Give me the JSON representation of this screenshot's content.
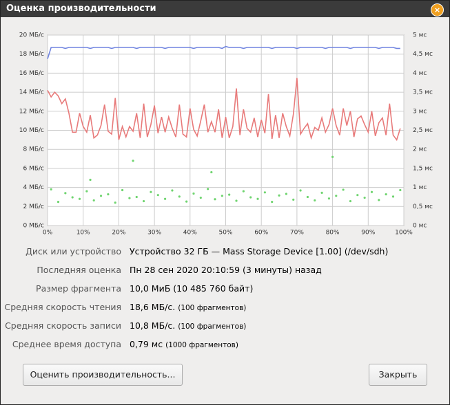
{
  "window": {
    "title": "Оценка производительности"
  },
  "chart_data": {
    "type": "line",
    "grid": true,
    "xlim": [
      0,
      100
    ],
    "xticks": [
      {
        "value": 0,
        "label": "0%"
      },
      {
        "value": 10,
        "label": "10%"
      },
      {
        "value": 20,
        "label": "20%"
      },
      {
        "value": 30,
        "label": "30%"
      },
      {
        "value": 40,
        "label": "40%"
      },
      {
        "value": 50,
        "label": "50%"
      },
      {
        "value": 60,
        "label": "60%"
      },
      {
        "value": 70,
        "label": "70%"
      },
      {
        "value": 80,
        "label": "80%"
      },
      {
        "value": 90,
        "label": "90%"
      },
      {
        "value": 100,
        "label": "100%"
      }
    ],
    "ylim": [
      0,
      20
    ],
    "yticks": [
      {
        "value": 0,
        "label": "0 МБ/с"
      },
      {
        "value": 2,
        "label": "2 МБ/с"
      },
      {
        "value": 4,
        "label": "4 МБ/с"
      },
      {
        "value": 6,
        "label": "6 МБ/с"
      },
      {
        "value": 8,
        "label": "8 МБ/с"
      },
      {
        "value": 10,
        "label": "10 МБ/с"
      },
      {
        "value": 12,
        "label": "12 МБ/с"
      },
      {
        "value": 14,
        "label": "14 МБ/с"
      },
      {
        "value": 16,
        "label": "16 МБ/с"
      },
      {
        "value": 18,
        "label": "18 МБ/с"
      },
      {
        "value": 20,
        "label": "20 МБ/с"
      }
    ],
    "y2lim": [
      0,
      5
    ],
    "y2ticks": [
      {
        "value": 0,
        "label": "0 мс"
      },
      {
        "value": 0.5,
        "label": "0,5 мс"
      },
      {
        "value": 1,
        "label": "1 мс"
      },
      {
        "value": 1.5,
        "label": "1,5 мс"
      },
      {
        "value": 2,
        "label": "2 мс"
      },
      {
        "value": 2.5,
        "label": "2,5 мс"
      },
      {
        "value": 3,
        "label": "3 мс"
      },
      {
        "value": 3.5,
        "label": "3,5 мс"
      },
      {
        "value": 4,
        "label": "4 мс"
      },
      {
        "value": 4.5,
        "label": "4,5 мс"
      },
      {
        "value": 5,
        "label": "5 мс"
      }
    ],
    "x": [
      0,
      1,
      2,
      3,
      4,
      5,
      6,
      7,
      8,
      9,
      10,
      11,
      12,
      13,
      14,
      15,
      16,
      17,
      18,
      19,
      20,
      21,
      22,
      23,
      24,
      25,
      26,
      27,
      28,
      29,
      30,
      31,
      32,
      33,
      34,
      35,
      36,
      37,
      38,
      39,
      40,
      41,
      42,
      43,
      44,
      45,
      46,
      47,
      48,
      49,
      50,
      51,
      52,
      53,
      54,
      55,
      56,
      57,
      58,
      59,
      60,
      61,
      62,
      63,
      64,
      65,
      66,
      67,
      68,
      69,
      70,
      71,
      72,
      73,
      74,
      75,
      76,
      77,
      78,
      79,
      80,
      81,
      82,
      83,
      84,
      85,
      86,
      87,
      88,
      89,
      90,
      91,
      92,
      93,
      94,
      95,
      96,
      97,
      98,
      99
    ],
    "series": [
      {
        "color": "#7084e0",
        "values": [
          17.5,
          18.7,
          18.7,
          18.7,
          18.7,
          18.6,
          18.7,
          18.7,
          18.7,
          18.7,
          18.7,
          18.7,
          18.6,
          18.7,
          18.7,
          18.7,
          18.7,
          18.7,
          18.6,
          18.7,
          18.7,
          18.7,
          18.7,
          18.7,
          18.7,
          18.6,
          18.7,
          18.7,
          18.7,
          18.7,
          18.7,
          18.7,
          18.7,
          18.6,
          18.7,
          18.7,
          18.7,
          18.7,
          18.7,
          18.7,
          18.7,
          18.6,
          18.7,
          18.7,
          18.7,
          18.7,
          18.7,
          18.7,
          18.7,
          18.6,
          18.8,
          18.7,
          18.7,
          18.7,
          18.7,
          18.6,
          18.7,
          18.7,
          18.7,
          18.7,
          18.7,
          18.7,
          18.7,
          18.6,
          18.7,
          18.7,
          18.7,
          18.7,
          18.7,
          18.7,
          18.6,
          18.7,
          18.7,
          18.7,
          18.7,
          18.7,
          18.7,
          18.7,
          18.6,
          18.7,
          18.7,
          18.7,
          18.7,
          18.7,
          18.7,
          18.6,
          18.7,
          18.7,
          18.7,
          18.7,
          18.7,
          18.7,
          18.7,
          18.6,
          18.7,
          18.7,
          18.7,
          18.7,
          18.6,
          18.6
        ]
      },
      {
        "color": "#e87a7a",
        "values": [
          14.2,
          13.5,
          14.0,
          13.6,
          12.8,
          13.3,
          11.8,
          9.8,
          9.8,
          11.8,
          10.4,
          9.8,
          11.6,
          9.2,
          9.5,
          10.5,
          12.7,
          9.9,
          9.6,
          13.4,
          9.0,
          10.4,
          9.3,
          10.4,
          9.9,
          11.8,
          9.2,
          12.8,
          9.3,
          10.6,
          12.6,
          9.7,
          11.4,
          9.8,
          11.4,
          10.2,
          9.3,
          12.7,
          9.6,
          9.3,
          12.3,
          10.1,
          9.4,
          11.0,
          12.7,
          9.8,
          10.9,
          9.8,
          12.2,
          9.2,
          11.4,
          9.2,
          10.4,
          14.4,
          9.5,
          12.2,
          10.2,
          9.8,
          11.3,
          9.3,
          11.1,
          9.7,
          13.8,
          9.1,
          11.6,
          9.2,
          11.8,
          10.4,
          9.4,
          11.7,
          15.5,
          9.6,
          10.2,
          10.7,
          9.2,
          10.3,
          10.0,
          11.3,
          9.8,
          10.6,
          12.3,
          10.5,
          9.5,
          12.3,
          10.5,
          12.0,
          9.3,
          11.2,
          11.5,
          10.6,
          9.8,
          12.0,
          9.4,
          10.8,
          11.3,
          9.5,
          12.8,
          9.5,
          9.0,
          10.2
        ]
      },
      {
        "color": "#6fd46f",
        "type": "scatter",
        "axis": "y2",
        "x": [
          1,
          3,
          5,
          7,
          9,
          11,
          13,
          15,
          17,
          19,
          21,
          23,
          25,
          27,
          29,
          31,
          33,
          35,
          37,
          39,
          41,
          43,
          45,
          47,
          49,
          51,
          53,
          55,
          57,
          59,
          61,
          63,
          65,
          67,
          69,
          71,
          73,
          75,
          77,
          79,
          81,
          83,
          85,
          87,
          89,
          91,
          93,
          95,
          97,
          99,
          24,
          46,
          80,
          12
        ],
        "values": [
          0.95,
          0.62,
          0.85,
          0.74,
          0.7,
          0.9,
          0.66,
          0.78,
          0.82,
          0.6,
          0.93,
          0.72,
          0.75,
          0.64,
          0.88,
          0.8,
          0.7,
          0.92,
          0.76,
          0.63,
          0.84,
          0.73,
          0.96,
          0.69,
          0.78,
          0.81,
          0.65,
          0.9,
          0.74,
          0.7,
          0.87,
          0.62,
          0.79,
          0.83,
          0.68,
          0.92,
          0.75,
          0.66,
          0.86,
          0.71,
          0.78,
          0.94,
          0.64,
          0.8,
          0.73,
          0.88,
          0.67,
          0.82,
          0.76,
          0.93,
          1.7,
          1.4,
          1.8,
          1.2
        ]
      }
    ]
  },
  "info": {
    "rows": [
      {
        "label": "Диск или устройство",
        "value": "Устройство 32 ГБ — Mass Storage Device [1.00] (/dev/sdh)"
      },
      {
        "label": "Последняя оценка",
        "value": "Пн 28 сен 2020 20:10:59 (3 минуты) назад"
      },
      {
        "label": "Размер фрагмента",
        "value": "10,0 МиБ (10 485 760 байт)"
      },
      {
        "label": "Средняя скорость чтения",
        "value": "18,6 МБ/с.",
        "note": "(100 фрагментов)"
      },
      {
        "label": "Средняя скорость записи",
        "value": "10,8 МБ/с.",
        "note": "(100 фрагментов)"
      },
      {
        "label": "Среднее время доступа",
        "value": "0,79 мс",
        "note": "(1000 фрагментов)"
      }
    ]
  },
  "buttons": {
    "benchmark": "Оценить производительность...",
    "close": "Закрыть"
  }
}
